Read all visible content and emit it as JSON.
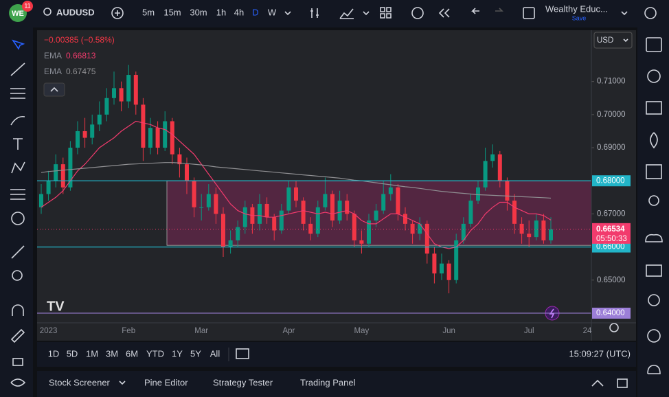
{
  "top_bar": {
    "badge": "11",
    "symbol": "AUDUSD",
    "intervals": [
      "5m",
      "15m",
      "30m",
      "1h",
      "4h",
      "D",
      "W"
    ],
    "layout_name": "Wealthy Educ...",
    "save": "Save"
  },
  "chart_data": {
    "type": "candlestick",
    "change": "−0.00385 (−0.58%)",
    "currency": "USD",
    "categories": [
      null,
      "2023",
      null,
      null,
      null,
      null,
      null,
      null,
      null,
      null,
      null,
      null,
      "Feb",
      null,
      null,
      null,
      null,
      null,
      null,
      null,
      null,
      null,
      "Mar",
      null,
      null,
      null,
      null,
      null,
      null,
      null,
      null,
      null,
      null,
      null,
      "Apr",
      null,
      null,
      null,
      null,
      null,
      null,
      null,
      null,
      null,
      "May",
      null,
      null,
      null,
      null,
      null,
      null,
      null,
      null,
      null,
      null,
      null,
      "Jun",
      null,
      null,
      null,
      null,
      null,
      null,
      null,
      null,
      null,
      null,
      "Jul",
      null,
      null,
      null,
      null,
      null,
      null,
      null,
      "24"
    ],
    "ohlc": [
      [
        0.672,
        0.679,
        0.67,
        0.676
      ],
      [
        0.676,
        0.683,
        0.674,
        0.68
      ],
      [
        0.68,
        0.688,
        0.678,
        0.685
      ],
      [
        0.685,
        0.687,
        0.676,
        0.678
      ],
      [
        0.678,
        0.692,
        0.677,
        0.69
      ],
      [
        0.69,
        0.698,
        0.688,
        0.695
      ],
      [
        0.695,
        0.699,
        0.69,
        0.693
      ],
      [
        0.693,
        0.7,
        0.691,
        0.697
      ],
      [
        0.697,
        0.704,
        0.695,
        0.7
      ],
      [
        0.7,
        0.708,
        0.698,
        0.705
      ],
      [
        0.705,
        0.713,
        0.703,
        0.708
      ],
      [
        0.708,
        0.71,
        0.701,
        0.704
      ],
      [
        0.704,
        0.715,
        0.702,
        0.712
      ],
      [
        0.712,
        0.713,
        0.7,
        0.703
      ],
      [
        0.703,
        0.705,
        0.686,
        0.69
      ],
      [
        0.69,
        0.699,
        0.688,
        0.696
      ],
      [
        0.696,
        0.698,
        0.688,
        0.69
      ],
      [
        0.69,
        0.701,
        0.689,
        0.698
      ],
      [
        0.698,
        0.699,
        0.685,
        0.688
      ],
      [
        0.688,
        0.69,
        0.681,
        0.685
      ],
      [
        0.685,
        0.687,
        0.676,
        0.68
      ],
      [
        0.68,
        0.681,
        0.669,
        0.672
      ],
      [
        0.672,
        0.676,
        0.668,
        0.672
      ],
      [
        0.672,
        0.679,
        0.671,
        0.676
      ],
      [
        0.676,
        0.678,
        0.667,
        0.67
      ],
      [
        0.67,
        0.672,
        0.657,
        0.66
      ],
      [
        0.66,
        0.665,
        0.658,
        0.662
      ],
      [
        0.662,
        0.668,
        0.66,
        0.666
      ],
      [
        0.666,
        0.674,
        0.664,
        0.672
      ],
      [
        0.672,
        0.673,
        0.664,
        0.667
      ],
      [
        0.667,
        0.676,
        0.665,
        0.673
      ],
      [
        0.673,
        0.675,
        0.667,
        0.669
      ],
      [
        0.669,
        0.67,
        0.662,
        0.665
      ],
      [
        0.665,
        0.673,
        0.664,
        0.671
      ],
      [
        0.671,
        0.68,
        0.67,
        0.678
      ],
      [
        0.678,
        0.68,
        0.672,
        0.674
      ],
      [
        0.674,
        0.675,
        0.665,
        0.667
      ],
      [
        0.667,
        0.669,
        0.662,
        0.664
      ],
      [
        0.664,
        0.674,
        0.663,
        0.672
      ],
      [
        0.672,
        0.681,
        0.671,
        0.676
      ],
      [
        0.676,
        0.677,
        0.666,
        0.668
      ],
      [
        0.668,
        0.677,
        0.667,
        0.674
      ],
      [
        0.674,
        0.676,
        0.668,
        0.67
      ],
      [
        0.67,
        0.671,
        0.66,
        0.662
      ],
      [
        0.662,
        0.665,
        0.658,
        0.661
      ],
      [
        0.661,
        0.67,
        0.66,
        0.668
      ],
      [
        0.668,
        0.673,
        0.666,
        0.671
      ],
      [
        0.671,
        0.68,
        0.67,
        0.676
      ],
      [
        0.676,
        0.682,
        0.674,
        0.678
      ],
      [
        0.678,
        0.679,
        0.668,
        0.67
      ],
      [
        0.67,
        0.672,
        0.665,
        0.667
      ],
      [
        0.667,
        0.668,
        0.661,
        0.664
      ],
      [
        0.664,
        0.669,
        0.662,
        0.667
      ],
      [
        0.667,
        0.668,
        0.655,
        0.658
      ],
      [
        0.658,
        0.66,
        0.649,
        0.652
      ],
      [
        0.652,
        0.658,
        0.65,
        0.655
      ],
      [
        0.655,
        0.656,
        0.646,
        0.65
      ],
      [
        0.65,
        0.664,
        0.649,
        0.662
      ],
      [
        0.662,
        0.669,
        0.661,
        0.667
      ],
      [
        0.667,
        0.676,
        0.666,
        0.674
      ],
      [
        0.674,
        0.68,
        0.673,
        0.678
      ],
      [
        0.678,
        0.69,
        0.677,
        0.686
      ],
      [
        0.686,
        0.691,
        0.684,
        0.688
      ],
      [
        0.688,
        0.689,
        0.678,
        0.68
      ],
      [
        0.68,
        0.681,
        0.671,
        0.674
      ],
      [
        0.674,
        0.676,
        0.664,
        0.667
      ],
      [
        0.667,
        0.669,
        0.661,
        0.664
      ],
      [
        0.664,
        0.668,
        0.66,
        0.663
      ],
      [
        0.663,
        0.67,
        0.662,
        0.668
      ],
      [
        0.668,
        0.67,
        0.661,
        0.662
      ],
      [
        0.662,
        0.669,
        0.661,
        0.66534
      ],
      null,
      null,
      null,
      null,
      null
    ],
    "up_color": "#089981",
    "down_color": "#f23645",
    "series": [
      {
        "name": "EMA",
        "color": "#f23b6d",
        "last": 0.66813,
        "values": [
          0.672,
          0.6735,
          0.675,
          0.677,
          0.68,
          0.683,
          0.685,
          0.6875,
          0.69,
          0.6915,
          0.693,
          0.695,
          0.6965,
          0.698,
          0.6975,
          0.697,
          0.696,
          0.6955,
          0.694,
          0.692,
          0.69,
          0.688,
          0.685,
          0.682,
          0.679,
          0.676,
          0.673,
          0.671,
          0.67,
          0.6695,
          0.6695,
          0.669,
          0.669,
          0.6695,
          0.67,
          0.6705,
          0.671,
          0.6705,
          0.67,
          0.6705,
          0.67,
          0.6705,
          0.671,
          0.67,
          0.668,
          0.667,
          0.667,
          0.6685,
          0.67,
          0.67,
          0.669,
          0.668,
          0.667,
          0.664,
          0.661,
          0.66,
          0.6595,
          0.66,
          0.662,
          0.665,
          0.667,
          0.67,
          0.672,
          0.6735,
          0.6735,
          0.672,
          0.671,
          0.67,
          0.67,
          0.6695,
          0.66813,
          null,
          null,
          null,
          null,
          null
        ]
      },
      {
        "name": "EMA",
        "color": "#8f8f92",
        "last": 0.67475,
        "values": [
          0.6825,
          0.6828,
          0.683,
          0.6832,
          0.6834,
          0.6836,
          0.6838,
          0.684,
          0.6842,
          0.6844,
          0.6846,
          0.6848,
          0.685,
          0.6851,
          0.6852,
          0.6853,
          0.6854,
          0.6855,
          0.6855,
          0.6854,
          0.6852,
          0.685,
          0.6848,
          0.6845,
          0.6842,
          0.684,
          0.6838,
          0.6836,
          0.6834,
          0.6832,
          0.683,
          0.6828,
          0.6826,
          0.6824,
          0.6822,
          0.682,
          0.6818,
          0.6816,
          0.6814,
          0.6812,
          0.681,
          0.6808,
          0.6805,
          0.6802,
          0.68,
          0.6797,
          0.6794,
          0.6791,
          0.6788,
          0.6785,
          0.6782,
          0.678,
          0.6777,
          0.6774,
          0.6771,
          0.6768,
          0.6766,
          0.6764,
          0.6762,
          0.676,
          0.6758,
          0.6757,
          0.6756,
          0.6755,
          0.6754,
          0.6753,
          0.6752,
          0.6751,
          0.675,
          0.6749,
          0.67475,
          null,
          null,
          null,
          null,
          null
        ]
      }
    ],
    "ylim": [
      0.6375,
      0.7255
    ],
    "yticks": [
      {
        "value": 0.71,
        "label": "0.71000"
      },
      {
        "value": 0.7,
        "label": "0.70000"
      },
      {
        "value": 0.69,
        "label": "0.69000"
      },
      {
        "value": 0.67,
        "label": "0.67000"
      },
      {
        "value": 0.65,
        "label": "0.65000"
      }
    ],
    "levels": [
      {
        "value": 0.68,
        "label": "0.68000",
        "color": "#22b5c8"
      },
      {
        "value": 0.66,
        "label": "0.66000",
        "color": "#22b5c8"
      },
      {
        "value": 0.64,
        "label": "0.64000",
        "color": "#9c7fd8"
      }
    ],
    "zone": [
      0.68,
      0.6605
    ],
    "last_price": {
      "value": 0.66534,
      "label": "0.66534",
      "countdown": "05:50:33",
      "color": "#f23b6d"
    }
  },
  "range_bar": {
    "ranges": [
      "1D",
      "5D",
      "1M",
      "3M",
      "6M",
      "YTD",
      "1Y",
      "5Y",
      "All"
    ],
    "clock": "15:09:27 (UTC)"
  },
  "bottom_panel": {
    "tabs": [
      "Stock Screener",
      "Pine Editor",
      "Strategy Tester",
      "Trading Panel"
    ]
  }
}
